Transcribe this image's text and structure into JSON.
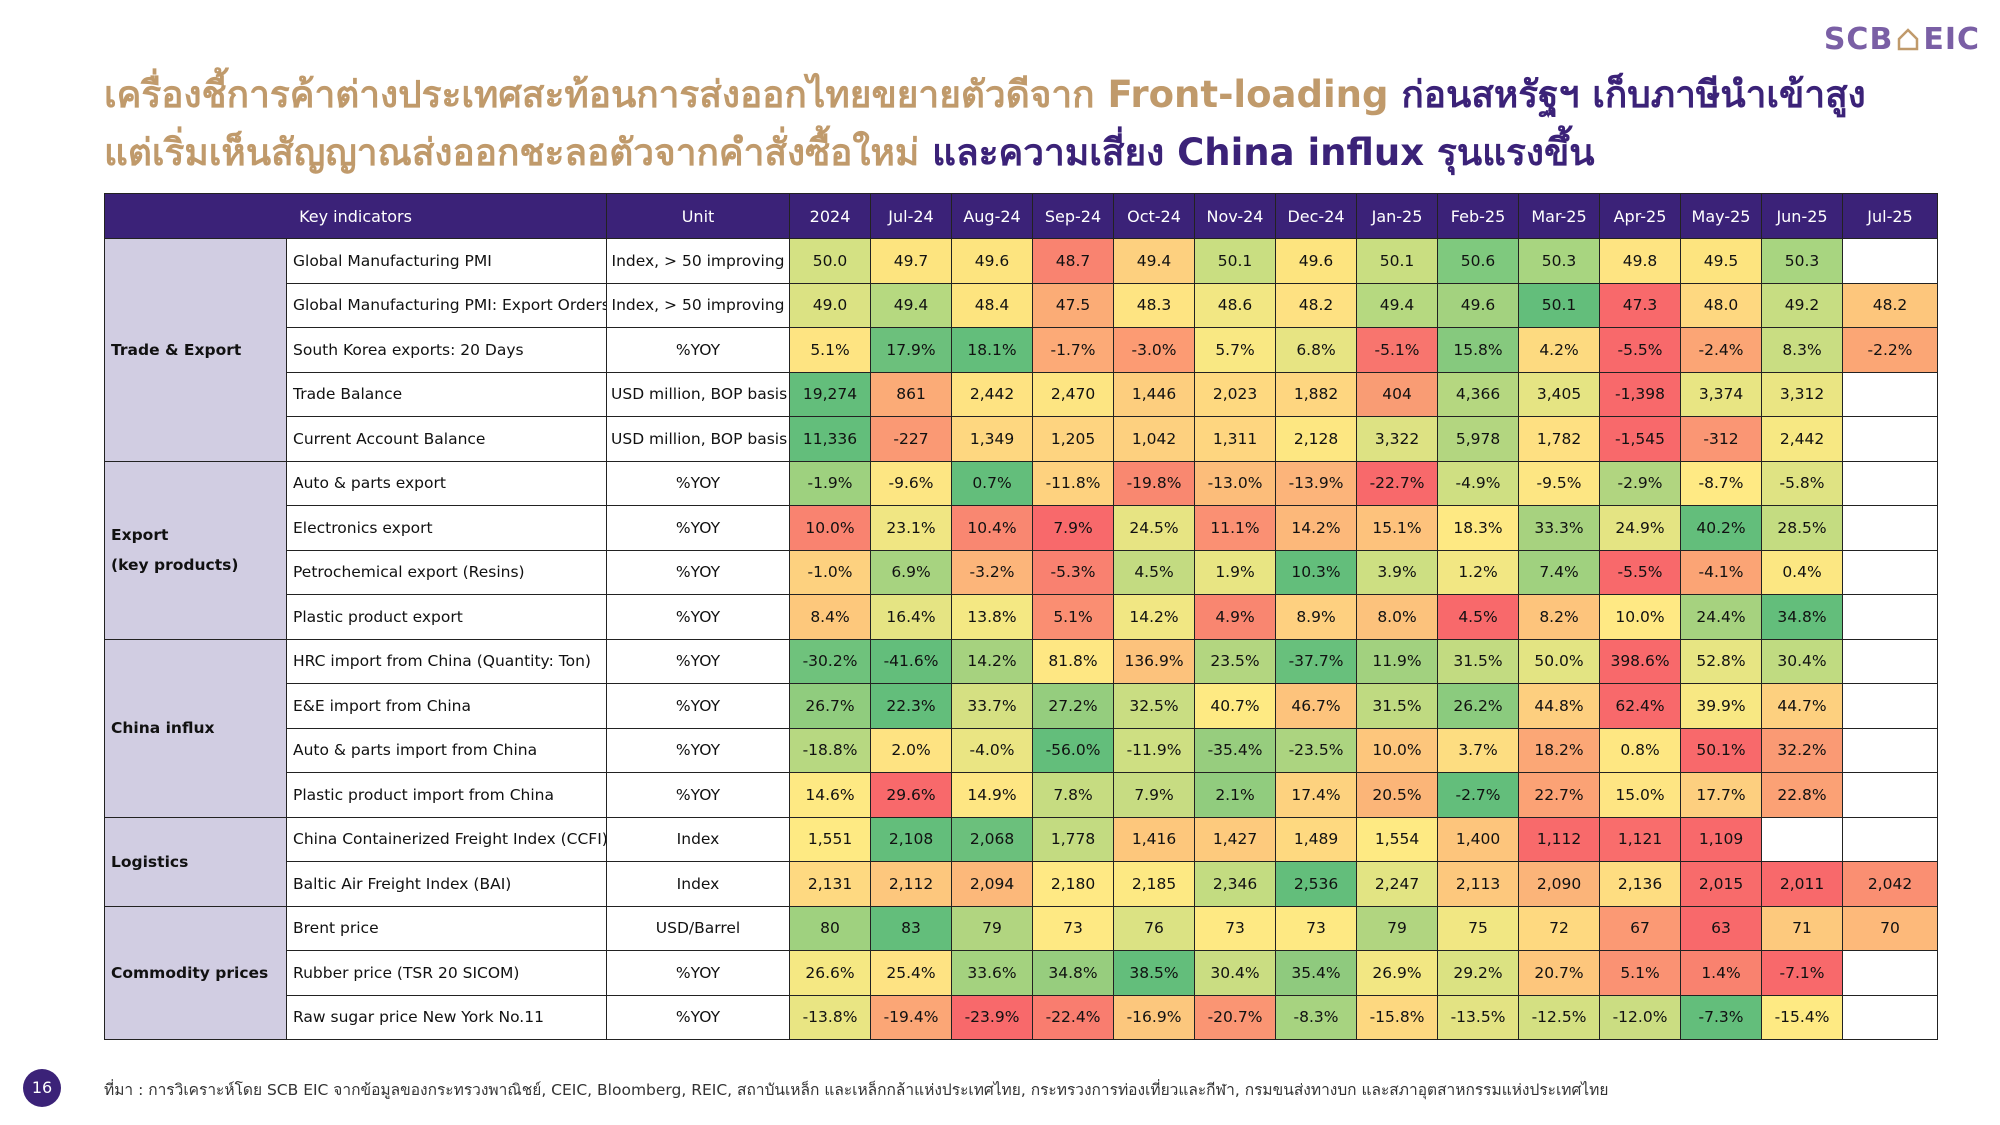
{
  "logo": {
    "left": "SCB",
    "right": "EIC"
  },
  "title": {
    "line1_gold": "เครื่องชี้การค้าต่างประเทศสะท้อนการส่งออกไทยขยายตัวดีจาก Front-loading",
    "line1_purple": "ก่อนสหรัฐฯ เก็บภาษีนำเข้าสูง",
    "line2_gold": "แต่เริ่มเห็นสัญญาณส่งออกชะลอตัวจากคำสั่งซื้อใหม่",
    "line2_purple": "และความเสี่ยง China influx รุนแรงขึ้น"
  },
  "table": {
    "header_indicator": "Key indicators",
    "header_unit": "Unit",
    "periods": [
      "2024",
      "Jul-24",
      "Aug-24",
      "Sep-24",
      "Oct-24",
      "Nov-24",
      "Dec-24",
      "Jan-25",
      "Feb-25",
      "Mar-25",
      "Apr-25",
      "May-25",
      "Jun-25",
      "Jul-25"
    ],
    "groups": [
      {
        "name": "Trade & Export",
        "rows": [
          {
            "indicator": "Global Manufacturing PMI",
            "unit": "Index, > 50 improving",
            "values": [
              "50.0",
              "49.7",
              "49.6",
              "48.7",
              "49.4",
              "50.1",
              "49.6",
              "50.1",
              "50.6",
              "50.3",
              "49.8",
              "49.5",
              "50.3",
              ""
            ],
            "colors": [
              "#d4e183",
              "#fde47f",
              "#fde47f",
              "#f98370",
              "#fdd07f",
              "#c9de81",
              "#fde47f",
              "#c9de81",
              "#7fc97e",
              "#a8d580",
              "#fee482",
              "#fde47f",
              "#a8d580",
              "#ffffff"
            ]
          },
          {
            "indicator": "Global Manufacturing PMI: Export Orders",
            "unit": "Index, > 50 improving",
            "values": [
              "49.0",
              "49.4",
              "48.4",
              "47.5",
              "48.3",
              "48.6",
              "48.2",
              "49.4",
              "49.6",
              "50.1",
              "47.3",
              "48.0",
              "49.2",
              "48.2"
            ],
            "colors": [
              "#dbe283",
              "#b6d980",
              "#fde47f",
              "#fbac76",
              "#fee482",
              "#f2e783",
              "#fee182",
              "#b6d980",
              "#a3d27f",
              "#63be7b",
              "#f8696b",
              "#fed880",
              "#c7dd82",
              "#fdc67c"
            ]
          },
          {
            "indicator": "South Korea exports: 20 Days",
            "unit": "%YOY",
            "values": [
              "5.1%",
              "17.9%",
              "18.1%",
              "-1.7%",
              "-3.0%",
              "5.7%",
              "6.8%",
              "-5.1%",
              "15.8%",
              "4.2%",
              "-5.5%",
              "-2.4%",
              "8.3%",
              "-2.2%"
            ],
            "colors": [
              "#fee482",
              "#6cc07c",
              "#63be7b",
              "#fcaa77",
              "#fc9b73",
              "#f9e883",
              "#e7e483",
              "#f8756e",
              "#86c97e",
              "#fdda80",
              "#f8696b",
              "#fba575",
              "#c9dd82",
              "#fba675"
            ]
          },
          {
            "indicator": "Trade Balance",
            "unit": "USD million, BOP basis",
            "values": [
              "19,274",
              "861",
              "2,442",
              "2,470",
              "1,446",
              "2,023",
              "1,882",
              "404",
              "4,366",
              "3,405",
              "-1,398",
              "3,374",
              "3,312",
              ""
            ],
            "colors": [
              "#63be7b",
              "#fbab77",
              "#fee382",
              "#fde582",
              "#fdce7e",
              "#fed980",
              "#fed680",
              "#f99c74",
              "#b5d780",
              "#e5e483",
              "#f8696b",
              "#e8e583",
              "#eae583",
              "#ffffff"
            ]
          },
          {
            "indicator": "Current Account Balance",
            "unit": "USD million, BOP basis",
            "values": [
              "11,336",
              "-227",
              "1,349",
              "1,205",
              "1,042",
              "1,311",
              "2,128",
              "3,322",
              "5,978",
              "1,782",
              "-1,545",
              "-312",
              "2,442",
              ""
            ],
            "colors": [
              "#63be7b",
              "#fa9974",
              "#fed780",
              "#fed480",
              "#fdd07f",
              "#fed680",
              "#fde782",
              "#dde283",
              "#b3d680",
              "#fee082",
              "#f8696b",
              "#fa9674",
              "#f7e883",
              "#ffffff"
            ]
          }
        ]
      },
      {
        "name": "Export\n(key products)",
        "rows": [
          {
            "indicator": "Auto & parts export",
            "unit": "%YOY",
            "values": [
              "-1.9%",
              "-9.6%",
              "0.7%",
              "-11.8%",
              "-19.8%",
              "-13.0%",
              "-13.9%",
              "-22.7%",
              "-4.9%",
              "-9.5%",
              "-2.9%",
              "-8.7%",
              "-5.8%",
              ""
            ],
            "colors": [
              "#9ed17f",
              "#fde683",
              "#63be7b",
              "#fed27f",
              "#f98870",
              "#fcbd7a",
              "#fcb47a",
              "#f8696b",
              "#cfdf82",
              "#fde683",
              "#b1d580",
              "#ffea84",
              "#dfe383",
              "#ffffff"
            ]
          },
          {
            "indicator": "Electronics export",
            "unit": "%YOY",
            "values": [
              "10.0%",
              "23.1%",
              "10.4%",
              "7.9%",
              "24.5%",
              "11.1%",
              "14.2%",
              "15.1%",
              "18.3%",
              "33.3%",
              "24.9%",
              "40.2%",
              "28.5%",
              ""
            ],
            "colors": [
              "#f98370",
              "#f0e683",
              "#f98771",
              "#f8696b",
              "#e7e483",
              "#fa9073",
              "#fcb87a",
              "#fdc27c",
              "#fee983",
              "#a7d27f",
              "#e4e483",
              "#63be7b",
              "#c4dc81",
              "#ffffff"
            ]
          },
          {
            "indicator": "Petrochemical export (Resins)",
            "unit": "%YOY",
            "values": [
              "-1.0%",
              "6.9%",
              "-3.2%",
              "-5.3%",
              "4.5%",
              "1.9%",
              "10.3%",
              "3.9%",
              "1.2%",
              "7.4%",
              "-5.5%",
              "-4.1%",
              "0.4%",
              ""
            ],
            "colors": [
              "#fdd17f",
              "#a7d380",
              "#fcb57a",
              "#f98170",
              "#c3db81",
              "#e8e583",
              "#63be7b",
              "#cddf82",
              "#f2e783",
              "#a0d17f",
              "#f8696b",
              "#fba475",
              "#fce782",
              "#ffffff"
            ]
          },
          {
            "indicator": "Plastic product export",
            "unit": "%YOY",
            "values": [
              "8.4%",
              "16.4%",
              "13.8%",
              "5.1%",
              "14.2%",
              "4.9%",
              "8.9%",
              "8.0%",
              "4.5%",
              "8.2%",
              "10.0%",
              "24.4%",
              "34.8%",
              ""
            ],
            "colors": [
              "#fdc87c",
              "#e5e483",
              "#f4e883",
              "#fa8e72",
              "#f1e783",
              "#f98670",
              "#fed080",
              "#fcc27c",
              "#f8696b",
              "#fdc47c",
              "#ffe984",
              "#a6d27f",
              "#63be7b",
              "#ffffff"
            ]
          }
        ]
      },
      {
        "name": "China influx",
        "rows": [
          {
            "indicator": "HRC import from China (Quantity: Ton)",
            "unit": "%YOY",
            "values": [
              "-30.2%",
              "-41.6%",
              "14.2%",
              "81.8%",
              "136.9%",
              "23.5%",
              "-37.7%",
              "11.9%",
              "31.5%",
              "50.0%",
              "398.6%",
              "52.8%",
              "30.4%",
              ""
            ],
            "colors": [
              "#6fc27c",
              "#63be7b",
              "#a6d27f",
              "#fee783",
              "#fcc27c",
              "#b3d680",
              "#68c07c",
              "#a2d17f",
              "#c2db81",
              "#e3e483",
              "#f8696b",
              "#e7e583",
              "#c0db81",
              "#ffffff"
            ]
          },
          {
            "indicator": "E&E import from China",
            "unit": "%YOY",
            "values": [
              "26.7%",
              "22.3%",
              "33.7%",
              "27.2%",
              "32.5%",
              "40.7%",
              "46.7%",
              "31.5%",
              "26.2%",
              "44.8%",
              "62.4%",
              "39.9%",
              "44.7%",
              ""
            ],
            "colors": [
              "#90cc7e",
              "#63be7b",
              "#d5e082",
              "#95cd7e",
              "#c9dd82",
              "#feea83",
              "#fdc37c",
              "#bfda81",
              "#8bcb7e",
              "#fdcf7f",
              "#f8696b",
              "#f8e883",
              "#fdd07f",
              "#ffffff"
            ]
          },
          {
            "indicator": "Auto & parts import from China",
            "unit": "%YOY",
            "values": [
              "-18.8%",
              "2.0%",
              "-4.0%",
              "-56.0%",
              "-11.9%",
              "-35.4%",
              "-23.5%",
              "10.0%",
              "3.7%",
              "18.2%",
              "0.8%",
              "50.1%",
              "32.2%",
              ""
            ],
            "colors": [
              "#b7d881",
              "#fee382",
              "#eae583",
              "#63be7b",
              "#cedf82",
              "#97cd7e",
              "#acd480",
              "#fdc67c",
              "#fddd81",
              "#fba776",
              "#fee782",
              "#f8696b",
              "#fa9a74",
              "#ffffff"
            ]
          },
          {
            "indicator": "Plastic product import from China",
            "unit": "%YOY",
            "values": [
              "14.6%",
              "29.6%",
              "14.9%",
              "7.8%",
              "7.9%",
              "2.1%",
              "17.4%",
              "20.5%",
              "-2.7%",
              "22.7%",
              "15.0%",
              "17.7%",
              "22.8%",
              ""
            ],
            "colors": [
              "#fee983",
              "#f8696b",
              "#fee683",
              "#c6dc81",
              "#c7dc82",
              "#91cc7e",
              "#fdd27f",
              "#fbb578",
              "#63be7b",
              "#fba275",
              "#fee583",
              "#fdcf7f",
              "#fba175",
              "#ffffff"
            ]
          }
        ]
      },
      {
        "name": "Logistics",
        "rows": [
          {
            "indicator": "China Containerized Freight Index (CCFI)",
            "unit": "Index",
            "values": [
              "1,551",
              "2,108",
              "2,068",
              "1,778",
              "1,416",
              "1,427",
              "1,489",
              "1,554",
              "1,400",
              "1,112",
              "1,121",
              "1,109",
              "",
              " "
            ],
            "colors": [
              "#feea83",
              "#63be7b",
              "#6bc07c",
              "#c3db81",
              "#fdc77c",
              "#fdca7d",
              "#fed980",
              "#feea83",
              "#fdc57c",
              "#f86a6b",
              "#f96d6c",
              "#f8696b",
              "#ffffff",
              "#ffffff"
            ]
          },
          {
            "indicator": "Baltic Air Freight Index (BAI)",
            "unit": "Index",
            "values": [
              "2,131",
              "2,112",
              "2,094",
              "2,180",
              "2,185",
              "2,346",
              "2,536",
              "2,247",
              "2,113",
              "2,090",
              "2,136",
              "2,015",
              "2,011",
              "2,042"
            ],
            "colors": [
              "#fed981",
              "#fdc77d",
              "#fcb87a",
              "#ffe984",
              "#fde983",
              "#c3dc81",
              "#63be7b",
              "#e2e483",
              "#fdc87d",
              "#fbb479",
              "#fedd81",
              "#f86b6b",
              "#f8696b",
              "#fa8f72"
            ]
          }
        ]
      },
      {
        "name": "Commodity prices",
        "rows": [
          {
            "indicator": "Brent price",
            "unit": "USD/Barrel",
            "values": [
              "80",
              "83",
              "79",
              "73",
              "76",
              "73",
              "73",
              "79",
              "75",
              "72",
              "67",
              "63",
              "71",
              "70"
            ],
            "colors": [
              "#9fd17f",
              "#63be7b",
              "#b1d580",
              "#fee983",
              "#dbe283",
              "#fee983",
              "#fee983",
              "#b1d580",
              "#f1e783",
              "#fed980",
              "#fb9974",
              "#f8696b",
              "#fdc97d",
              "#fdb97a"
            ]
          },
          {
            "indicator": "Rubber price (TSR 20 SICOM)",
            "unit": "%YOY",
            "values": [
              "26.6%",
              "25.4%",
              "33.6%",
              "34.8%",
              "38.5%",
              "30.4%",
              "35.4%",
              "26.9%",
              "29.2%",
              "20.7%",
              "5.1%",
              "1.4%",
              "-7.1%",
              ""
            ],
            "colors": [
              "#f5e883",
              "#fee383",
              "#a4d27f",
              "#97cd7e",
              "#63be7b",
              "#cadd82",
              "#8fca7e",
              "#f2e783",
              "#dbe282",
              "#fdc67c",
              "#fa9273",
              "#f9826f",
              "#f8696b",
              "#ffffff"
            ]
          },
          {
            "indicator": "Raw sugar price New York No.11",
            "unit": "%YOY",
            "values": [
              "-13.8%",
              "-19.4%",
              "-23.9%",
              "-22.4%",
              "-16.9%",
              "-20.7%",
              "-8.3%",
              "-15.8%",
              "-13.5%",
              "-12.5%",
              "-12.0%",
              "-7.3%",
              "-15.4%",
              ""
            ],
            "colors": [
              "#e9e583",
              "#fba676",
              "#f8696b",
              "#f97d6f",
              "#fcc77d",
              "#fa9573",
              "#a7d380",
              "#fdd880",
              "#e3e383",
              "#d4e082",
              "#cbdd82",
              "#63be7b",
              "#feea83",
              "#ffffff"
            ]
          }
        ]
      }
    ]
  },
  "footer": "ที่มา : การวิเคราะห์โดย SCB EIC จากข้อมูลของกระทรวงพาณิชย์, CEIC, Bloomberg, REIC, สถาบันเหล็ก และเหล็กกล้าแห่งประเทศไทย, กระทรวงการท่องเที่ยวและกีฬา, กรมขนส่งทางบก และสภาอุตสาหกรรมแห่งประเทศไทย",
  "page_number": "16"
}
